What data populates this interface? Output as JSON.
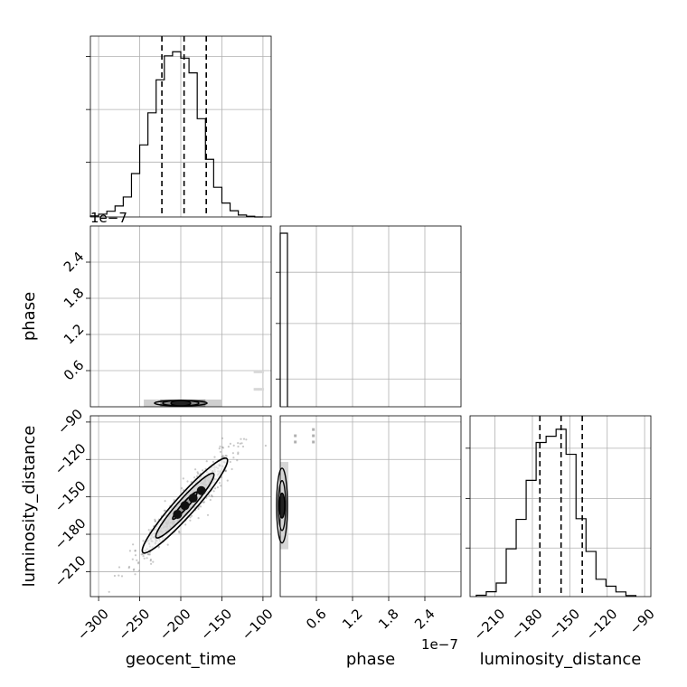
{
  "chart_data": {
    "type": "corner",
    "parameters": [
      "geocent_time",
      "phase",
      "luminosity_distance"
    ],
    "offset_text": "1e−7",
    "diagonal": [
      {
        "parameter": "geocent_time",
        "type": "step-histogram",
        "x_range": [
          -310,
          -90
        ],
        "bin_edges": [
          -310,
          -300,
          -290,
          -280,
          -270,
          -260,
          -250,
          -240,
          -230,
          -220,
          -210,
          -200,
          -190,
          -180,
          -170,
          -160,
          -150,
          -140,
          -130,
          -120,
          -110,
          -100
        ],
        "counts": [
          0.006,
          0.016,
          0.033,
          0.063,
          0.115,
          0.25,
          0.415,
          0.6,
          0.79,
          0.928,
          0.952,
          0.915,
          0.83,
          0.566,
          0.332,
          0.171,
          0.08,
          0.036,
          0.011,
          0.004,
          0
        ],
        "quantile_lines": [
          -223,
          -196,
          -169
        ],
        "yticks": [
          0.316,
          0.619,
          0.925
        ]
      },
      {
        "parameter": "phase",
        "type": "step-histogram",
        "x_range": [
          0,
          3.0
        ],
        "bin_edges": [
          0,
          0.12
        ],
        "counts": [
          1.0
        ],
        "quantile_lines": [],
        "yticks": [
          0.16,
          0.48,
          0.775
        ]
      },
      {
        "parameter": "luminosity_distance",
        "type": "step-histogram",
        "x_range": [
          -230,
          -85
        ],
        "bin_edges": [
          -225,
          -217,
          -209,
          -201,
          -193,
          -185,
          -177,
          -169,
          -161,
          -153,
          -145,
          -137,
          -129,
          -121,
          -113,
          -105,
          -97
        ],
        "counts": [
          0.008,
          0.028,
          0.078,
          0.275,
          0.445,
          0.67,
          0.888,
          0.924,
          0.964,
          0.82,
          0.449,
          0.26,
          0.1,
          0.06,
          0.027,
          0.006
        ],
        "quantile_lines": [
          -174,
          -157,
          -140
        ],
        "yticks": [
          0.28,
          0.565,
          0.855
        ]
      }
    ],
    "lower_panels": [
      {
        "x": "geocent_time",
        "y": "phase",
        "x_range": [
          -310,
          -90
        ],
        "y_range": [
          0,
          3.0
        ],
        "contour_centre": [
          -200,
          0.03
        ],
        "contour_half_widths": [
          [
            32,
            0.045
          ],
          [
            22,
            0.032
          ],
          [
            12,
            0.02
          ]
        ],
        "outlier_points": [
          [
            -108,
            0.58
          ],
          [
            -102,
            0.58
          ],
          [
            -108,
            0.29
          ],
          [
            -102,
            0.29
          ]
        ]
      },
      {
        "x": "geocent_time",
        "y": "luminosity_distance",
        "x_range": [
          -310,
          -90
        ],
        "y_range": [
          -230,
          -85
        ],
        "correlation": 0.95,
        "mean": [
          -195,
          -157
        ],
        "sd": [
          30,
          22
        ],
        "contour_levels_sigma": [
          0.5,
          1.18,
          1.73
        ],
        "density_peaks": [
          [
            -204,
            -164
          ],
          [
            -195,
            -157
          ],
          [
            -185,
            -151
          ],
          [
            -175,
            -145
          ]
        ]
      },
      {
        "x": "phase",
        "y": "luminosity_distance",
        "x_range": [
          0,
          3.0
        ],
        "y_range": [
          -230,
          -85
        ],
        "contour_centre": [
          0.06,
          -157
        ],
        "contour_half_widths": [
          [
            0.09,
            30
          ],
          [
            0.06,
            20
          ],
          [
            0.03,
            10
          ]
        ],
        "outlier_points": [
          [
            0.25,
            -106
          ],
          [
            0.25,
            -101
          ],
          [
            0.55,
            -106
          ],
          [
            0.55,
            -101
          ],
          [
            0.55,
            -96
          ]
        ]
      }
    ],
    "axes": {
      "geocent_time": {
        "label": "geocent_time",
        "ticks": [
          -300,
          -250,
          -200,
          -150,
          -100
        ],
        "tick_labels": [
          "−300",
          "−250",
          "−200",
          "−150",
          "−100"
        ]
      },
      "phase": {
        "label": "phase",
        "ticks": [
          0.6,
          1.2,
          1.8,
          2.4
        ],
        "tick_labels": [
          "0.6",
          "1.2",
          "1.8",
          "2.4"
        ]
      },
      "luminosity_distance": {
        "label": "luminosity_distance",
        "ticks": [
          -210,
          -180,
          -150,
          -120,
          -90
        ],
        "tick_labels": [
          "−210",
          "−180",
          "−150",
          "−120",
          "−90"
        ]
      }
    },
    "grid": true,
    "legend": "none"
  }
}
